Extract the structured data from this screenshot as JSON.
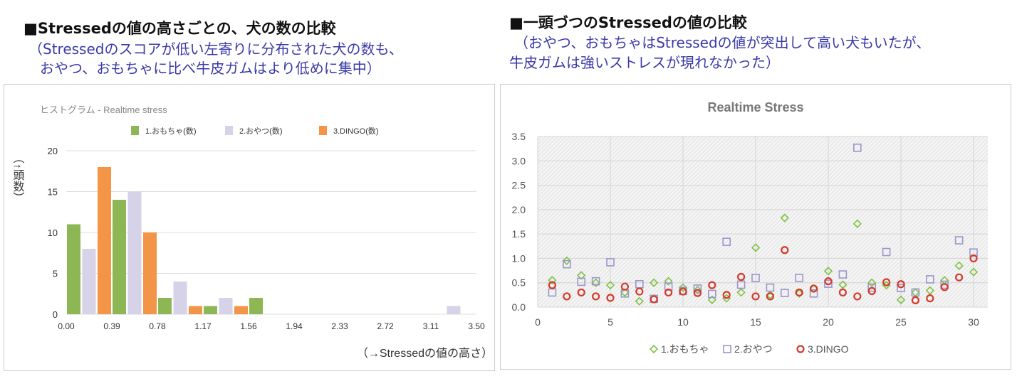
{
  "left": {
    "heading": "■Stressedの値の高さごとの、犬の数の比較",
    "note1": "（Stressedのスコアが低い左寄りに分布された犬の数も、",
    "note2": "おやつ、おもちゃに比べ牛皮ガムはより低めに集中）"
  },
  "right": {
    "heading": "■一頭づつのStressedの値の比較",
    "note1": "（おやつ、おもちゃはStressedの値が突出して高い犬もいたが、",
    "note2": "牛皮ガムは強いストレスが現れなかった）"
  },
  "chart_data": [
    {
      "type": "bar",
      "title": "ヒストグラム - Realtime stress",
      "ylabel": "（↑頭数）",
      "xlabel": "（→Stressedの値の高さ）",
      "x_ticks": [
        "0.00",
        "0.39",
        "0.78",
        "1.17",
        "1.56",
        "1.94",
        "2.33",
        "2.72",
        "3.11",
        "3.50"
      ],
      "ylim": [
        0,
        20
      ],
      "y_ticks": [
        "0",
        "5",
        "10",
        "15",
        "20"
      ],
      "legend": "top",
      "grid": "horizontal",
      "series": [
        {
          "name": "1.おもちゃ(数)",
          "color": "#8db654",
          "values": [
            11,
            14,
            2,
            1,
            2,
            0,
            0,
            0,
            0
          ]
        },
        {
          "name": "2.おやつ(数)",
          "color": "#d6d2e8",
          "values": [
            8,
            15,
            4,
            2,
            0,
            0,
            0,
            0,
            1
          ]
        },
        {
          "name": "3.DINGO(数)",
          "color": "#f39546",
          "values": [
            18,
            10,
            1,
            1,
            0,
            0,
            0,
            0,
            0
          ]
        }
      ]
    },
    {
      "type": "scatter",
      "title": "Realtime Stress",
      "xlim": [
        0,
        30
      ],
      "ylim": [
        0,
        3.5
      ],
      "x_ticks": [
        "0",
        "5",
        "10",
        "15",
        "20",
        "25",
        "30"
      ],
      "y_ticks": [
        "0.0",
        "0.5",
        "1.0",
        "1.5",
        "2.0",
        "2.5",
        "3.0",
        "3.5"
      ],
      "legend": "bottom",
      "grid": "both",
      "x": [
        1,
        2,
        3,
        4,
        5,
        6,
        7,
        8,
        9,
        10,
        11,
        12,
        13,
        14,
        15,
        16,
        17,
        18,
        19,
        20,
        21,
        22,
        23,
        24,
        25,
        26,
        27,
        28,
        29,
        30
      ],
      "series": [
        {
          "name": "1.おもちゃ",
          "marker": "diamond",
          "color": "#7dc242",
          "values": [
            0.55,
            0.95,
            0.65,
            0.5,
            0.45,
            0.3,
            0.12,
            0.5,
            0.53,
            0.4,
            0.35,
            0.15,
            0.18,
            0.3,
            1.22,
            0.25,
            1.83,
            0.28,
            0.38,
            0.74,
            0.46,
            1.71,
            0.5,
            0.45,
            0.15,
            0.3,
            0.34,
            0.55,
            0.85,
            0.72
          ]
        },
        {
          "name": "2.おやつ",
          "marker": "square",
          "color": "#9a96cc",
          "values": [
            0.3,
            0.88,
            0.52,
            0.53,
            0.92,
            0.28,
            0.47,
            0.17,
            0.42,
            0.33,
            0.38,
            0.27,
            1.34,
            0.46,
            0.6,
            0.4,
            0.29,
            0.6,
            0.28,
            0.48,
            0.67,
            3.27,
            0.4,
            1.13,
            0.39,
            0.3,
            0.57,
            0.46,
            1.37,
            1.12
          ]
        },
        {
          "name": "3.DINGO",
          "marker": "circle",
          "color": "#d43a2a",
          "values": [
            0.45,
            0.22,
            0.3,
            0.22,
            0.19,
            0.42,
            0.32,
            0.16,
            0.3,
            0.32,
            0.29,
            0.45,
            0.25,
            0.62,
            0.22,
            0.22,
            1.17,
            0.3,
            0.38,
            0.53,
            0.3,
            0.22,
            0.33,
            0.51,
            0.47,
            0.14,
            0.18,
            0.41,
            0.61,
            1.0
          ]
        }
      ]
    }
  ]
}
